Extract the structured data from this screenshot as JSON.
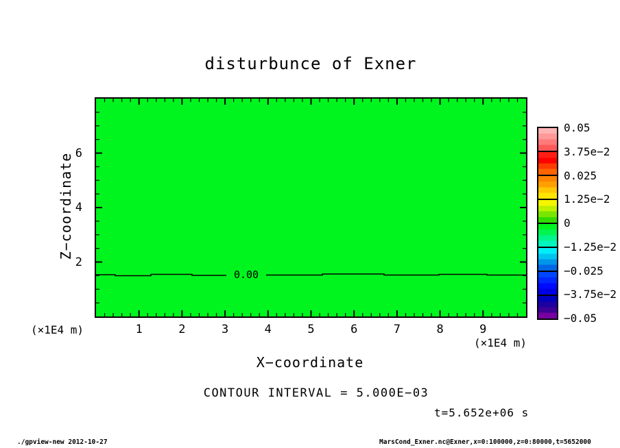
{
  "title": "disturbunce of Exner",
  "plot": {
    "fill_color": "#00f51e",
    "contour_label": "0.00",
    "x_axis": {
      "label": "X−coordinate",
      "unit": "(×1E4 m)"
    },
    "y_axis": {
      "label": "Z−coordinate",
      "unit": "(×1E4 m)"
    }
  },
  "colorbar": {
    "labels": [
      "0.05",
      "3.75e−2",
      "0.025",
      "1.25e−2",
      "0",
      "−1.25e−2",
      "−0.025",
      "−3.75e−2",
      "−0.05"
    ],
    "segments": [
      [
        "#ffb4b4",
        "#ff9898",
        "#ff7a7a",
        "#ff5a5a"
      ],
      [
        "#ff1e14",
        "#ff0000",
        "#ff3c00",
        "#ff6400"
      ],
      [
        "#ff8200",
        "#ffa000",
        "#ffc800",
        "#ffe600"
      ],
      [
        "#f5f500",
        "#bef000",
        "#78e600",
        "#32dc00"
      ],
      [
        "#00f51e",
        "#00f550",
        "#00f58c",
        "#00f5be"
      ],
      [
        "#00eef7",
        "#00c3f0",
        "#0096ea",
        "#0066e6"
      ],
      [
        "#0046ff",
        "#0028ff",
        "#000aff",
        "#0000e6"
      ],
      [
        "#0000be",
        "#1e00a0",
        "#3c0096",
        "#7800a0"
      ]
    ]
  },
  "annotations": {
    "contour_interval": "CONTOUR INTERVAL = 5.000E−03",
    "time": "t=5.652e+06 s"
  },
  "footer": {
    "left": "./gpview-new  2012-10-27",
    "right": "MarsCond_Exner.nc@Exner,x=0:100000,z=0:80000,t=5652000"
  },
  "chart_data": {
    "type": "heatmap",
    "subtype": "filled-contour",
    "title": "disturbunce of Exner",
    "xlabel": "X−coordinate",
    "ylabel": "Z−coordinate",
    "x_unit": "(×1E4 m)",
    "y_unit": "(×1E4 m)",
    "xlim": [
      0,
      10
    ],
    "ylim": [
      0,
      8
    ],
    "x_major_ticks": [
      1,
      2,
      3,
      4,
      5,
      6,
      7,
      8,
      9
    ],
    "x_minor_step": 0.2,
    "y_major_ticks": [
      2,
      4,
      6
    ],
    "y_minor_step": 0.5,
    "contour_interval": 0.005,
    "colorbar_levels": [
      0.05,
      0.0375,
      0.025,
      0.0125,
      0,
      -0.0125,
      -0.025,
      -0.0375,
      -0.05
    ],
    "field_summary": "Exner function disturbance is approximately 0 over the whole domain (uniform green fill); a single 0.00 contour line runs horizontally at z ≈ 1.55 ×1E4 m",
    "zero_contour": {
      "label": "0.00",
      "z_value": 1.55
    },
    "time_label": "t=5.652e+06 s",
    "time_seconds": 5652000,
    "grid": false,
    "legend_position": "right-colorbar"
  }
}
